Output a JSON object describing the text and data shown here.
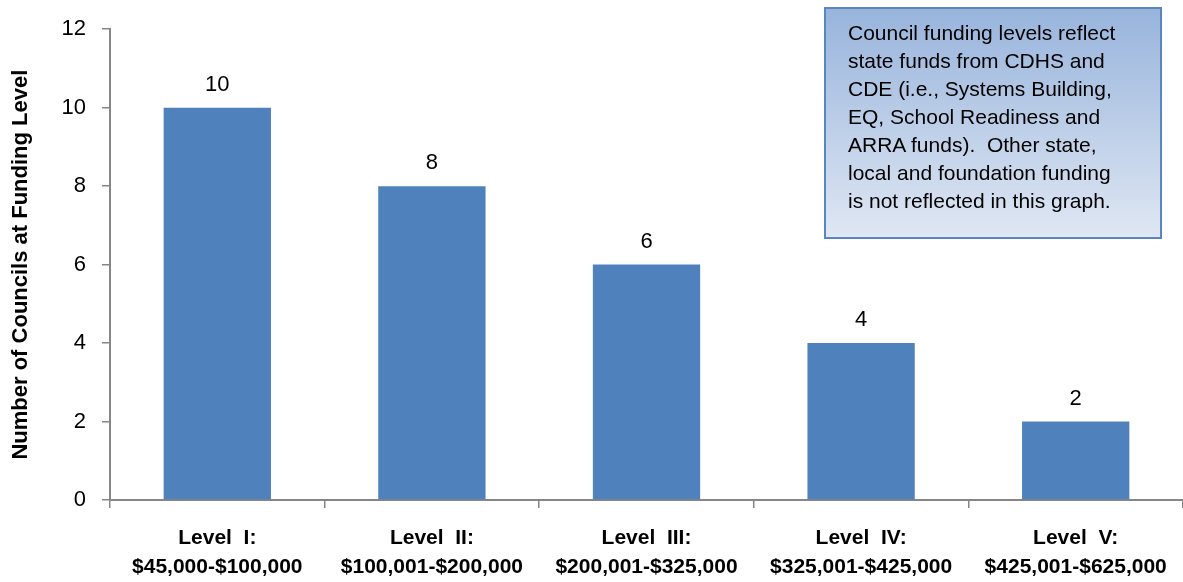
{
  "chart_data": {
    "type": "bar",
    "ylabel": "Number of Councils at Funding Level",
    "categories": [
      "Level  I:\n$45,000-$100,000",
      "Level  II:\n$100,001-$200,000",
      "Level  III:\n$200,001-$325,000",
      "Level  IV:\n$325,001-$425,000",
      "Level  V:\n$425,001-$625,000"
    ],
    "values": [
      10,
      8,
      6,
      4,
      2
    ],
    "color": "#4f81bd",
    "ylim": [
      0,
      12
    ],
    "yticks": [
      0,
      2,
      4,
      6,
      8,
      10,
      12
    ],
    "data_labels": true,
    "annotations": [
      "Council funding levels reflect state funds from CDHS and CDE (i.e., Systems Building, EQ, School Readiness and ARRA funds).  Other state, local and foundation funding is not reflected in this graph."
    ]
  }
}
